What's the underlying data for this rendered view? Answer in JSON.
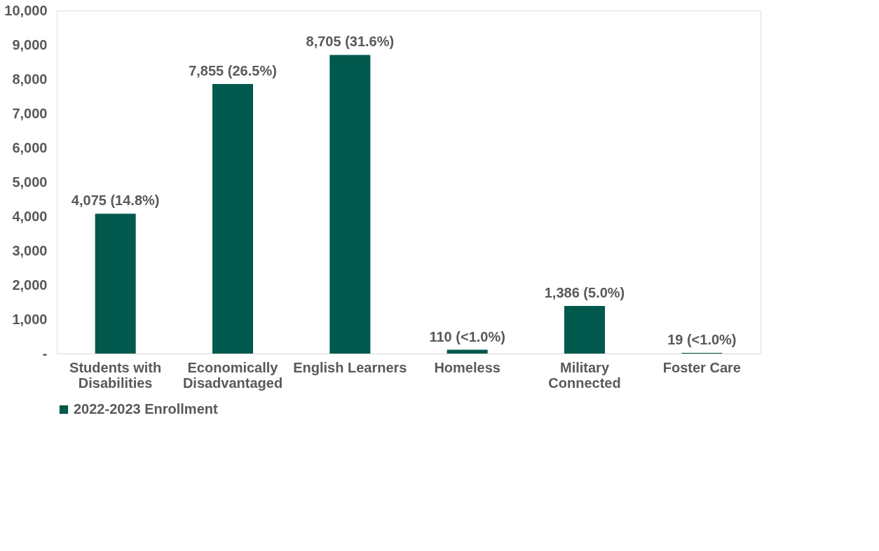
{
  "chart_data": {
    "type": "bar",
    "categories": [
      "Students with Disabilities",
      "Economically Disadvantaged",
      "English Learners",
      "Homeless",
      "Military Connected",
      "Foster Care"
    ],
    "series": [
      {
        "name": "2022-2023 Enrollment",
        "color": "#00594c",
        "values": [
          4075,
          7855,
          8705,
          110,
          1386,
          19
        ]
      }
    ],
    "value_labels": [
      "4,075 (14.8%)",
      "7,855 (26.5%)",
      "8,705 (31.6%)",
      "110 (<1.0%)",
      "1,386 (5.0%)",
      "19 (<1.0%)"
    ],
    "ylim": [
      0,
      10000
    ],
    "yticks": [
      {
        "value": 0,
        "label": "-"
      },
      {
        "value": 1000,
        "label": "1,000"
      },
      {
        "value": 2000,
        "label": "2,000"
      },
      {
        "value": 3000,
        "label": "3,000"
      },
      {
        "value": 4000,
        "label": "4,000"
      },
      {
        "value": 5000,
        "label": "5,000"
      },
      {
        "value": 6000,
        "label": "6,000"
      },
      {
        "value": 7000,
        "label": "7,000"
      },
      {
        "value": 8000,
        "label": "8,000"
      },
      {
        "value": 9000,
        "label": "9,000"
      },
      {
        "value": 10000,
        "label": "10,000"
      }
    ],
    "grid": false,
    "legend": "bottom"
  }
}
